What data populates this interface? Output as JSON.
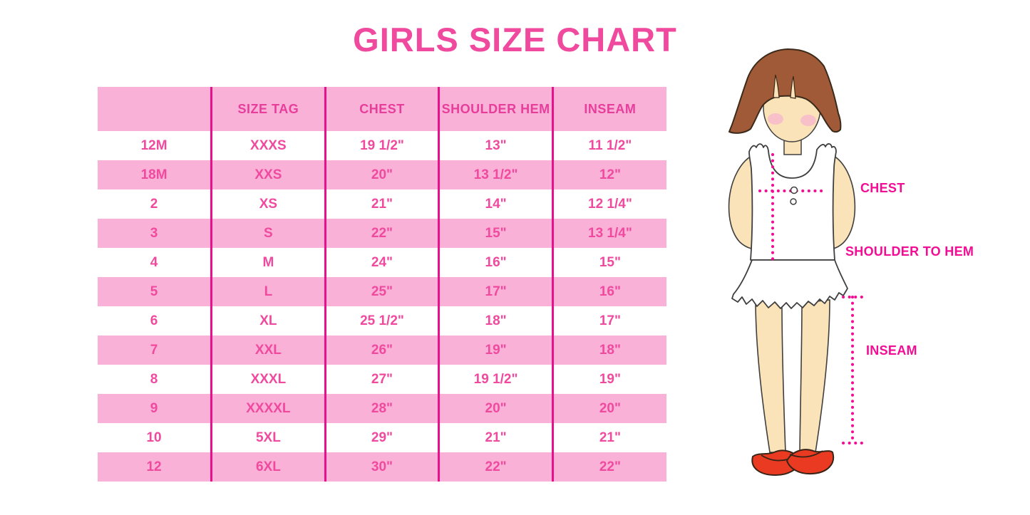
{
  "title": "GIRLS SIZE CHART",
  "table": {
    "headers": [
      "",
      "SIZE TAG",
      "CHEST",
      "SHOULDER HEM",
      "INSEAM"
    ],
    "rows": [
      [
        "12M",
        "XXXS",
        "19 1/2\"",
        "13\"",
        "11 1/2\""
      ],
      [
        "18M",
        "XXS",
        "20\"",
        "13 1/2\"",
        "12\""
      ],
      [
        "2",
        "XS",
        "21\"",
        "14\"",
        "12 1/4\""
      ],
      [
        "3",
        "S",
        "22\"",
        "15\"",
        "13 1/4\""
      ],
      [
        "4",
        "M",
        "24\"",
        "16\"",
        "15\""
      ],
      [
        "5",
        "L",
        "25\"",
        "17\"",
        "16\""
      ],
      [
        "6",
        "XL",
        "25 1/2\"",
        "18\"",
        "17\""
      ],
      [
        "7",
        "XXL",
        "26\"",
        "19\"",
        "18\""
      ],
      [
        "8",
        "XXXL",
        "27\"",
        "19 1/2\"",
        "19\""
      ],
      [
        "9",
        "XXXXL",
        "28\"",
        "20\"",
        "20\""
      ],
      [
        "10",
        "5XL",
        "29\"",
        "21\"",
        "21\""
      ],
      [
        "12",
        "6XL",
        "30\"",
        "22\"",
        "22\""
      ]
    ]
  },
  "figure": {
    "labels": {
      "chest": "CHEST",
      "shoulder_to_hem": "SHOULDER TO HEM",
      "inseam": "INSEAM"
    }
  },
  "colors": {
    "title_pink": "#F04A9F",
    "header_text_pink": "#E73E9C",
    "row_pink": "#FAB1D7",
    "divider_magenta": "#E8118C",
    "label_magenta": "#F30D94",
    "dotted_line_magenta": "#F20D93",
    "hair_brown": "#A05A38",
    "skin": "#FAE3B8",
    "shoe_red": "#EA3B22"
  }
}
